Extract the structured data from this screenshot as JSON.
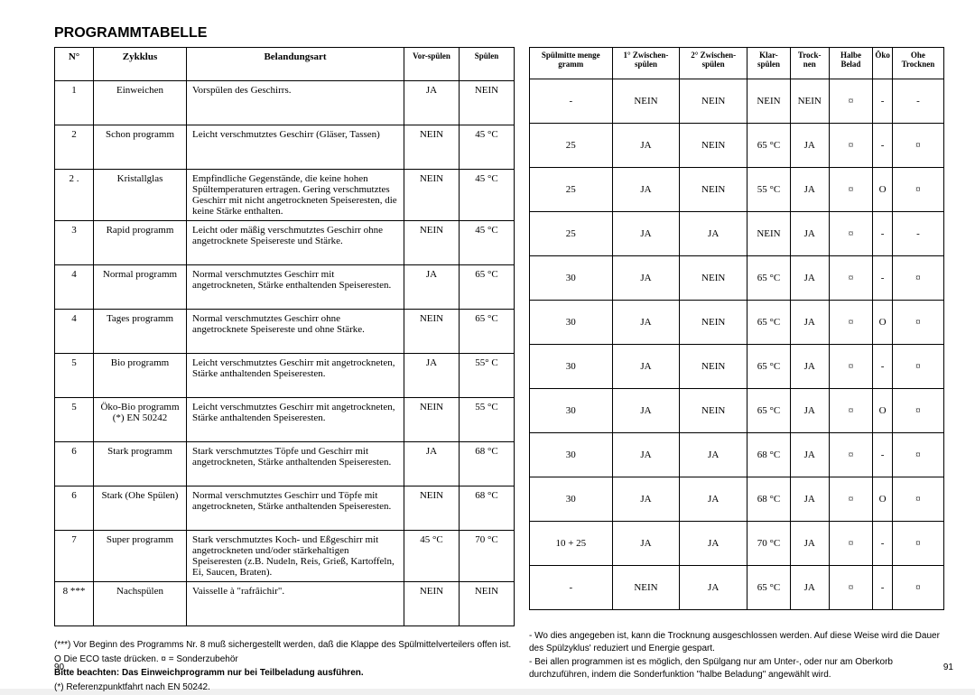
{
  "title": "PROGRAMMTABELLE",
  "leftPageNo": "90",
  "rightPageNo": "91",
  "leftHeaders": {
    "n": "N°",
    "zyklus": "Zykklus",
    "belandung": "Belandungsart",
    "vorspulen": "Vor-spülen",
    "spulen": "Spülen"
  },
  "leftRows": [
    {
      "n": "1",
      "zyk": "Einweichen",
      "bel": "Vorspülen des Geschirrs.",
      "vor": "JA",
      "sp": "NEIN"
    },
    {
      "n": "2",
      "zyk": "Schon programm",
      "bel": "Leicht verschmutztes Geschirr (Gläser, Tassen)",
      "vor": "NEIN",
      "sp": "45 °C"
    },
    {
      "n": "2 .",
      "zyk": "Kristallglas",
      "bel": "Empfindliche Gegenstände, die keine hohen Spültemperaturen ertragen. Gering verschmutztes Geschirr mit nicht angetrockneten Speiseresten, die keine Stärke enthalten.",
      "vor": "NEIN",
      "sp": "45 °C"
    },
    {
      "n": "3",
      "zyk": "Rapid programm",
      "bel": "Leicht oder mäßig verschmutztes Geschirr ohne angetrocknete Speisereste und Stärke.",
      "vor": "NEIN",
      "sp": "45 °C"
    },
    {
      "n": "4",
      "zyk": "Normal programm",
      "bel": "Normal verschmutztes Geschirr mit angetrockneten, Stärke enthaltenden Speiseresten.",
      "vor": "JA",
      "sp": "65 °C"
    },
    {
      "n": "4",
      "zyk": "Tages programm",
      "bel": "Normal verschmutztes Geschirr ohne angetrocknete Speisereste und ohne Stärke.",
      "vor": "NEIN",
      "sp": "65 °C"
    },
    {
      "n": "5",
      "zyk": "Bio programm",
      "bel": "Leicht verschmutztes Geschirr mit angetrockneten, Stärke anthaltenden Speiseresten.",
      "vor": "JA",
      "sp": "55° C"
    },
    {
      "n": "5",
      "zyk": "Öko-Bio programm (*) EN 50242",
      "bel": "Leicht verschmutztes Geschirr mit angetrockneten, Stärke anthaltenden Speiseresten.",
      "vor": "NEIN",
      "sp": "55 °C"
    },
    {
      "n": "6",
      "zyk": "Stark programm",
      "bel": "Stark verschmutztes Töpfe und Geschirr mit angetrockneten, Stärke anthaltenden Speiseresten.",
      "vor": "JA",
      "sp": "68 °C"
    },
    {
      "n": "6",
      "zyk": "Stark (Ohe Spülen)",
      "bel": "Normal verschmutztes Geschirr und Töpfe mit angetrockneten, Stärke anthaltenden Speiseresten.",
      "vor": "NEIN",
      "sp": "68 °C"
    },
    {
      "n": "7",
      "zyk": "Super programm",
      "bel": "Stark verschmutztes Koch- und Eßgeschirr mit angetrockneten und/oder stärkehaltigen Speiseresten (z.B. Nudeln, Reis, Grieß, Kartoffeln, Ei, Saucen, Braten).",
      "vor": "45 °C",
      "sp": "70 °C"
    },
    {
      "n": "8 ***",
      "zyk": "Nachspülen",
      "bel": "Vaisselle à \"rafrâichir\".",
      "vor": "NEIN",
      "sp": "NEIN"
    }
  ],
  "rightHeaders": {
    "spulmitte": "Spülmitte menge gramm",
    "zw1": "1° Zwischen-spülen",
    "zw2": "2° Zwischen-spülen",
    "klar": "Klar-spülen",
    "trock": "Trock-nen",
    "halbe": "Halbe Belad",
    "oko": "Öko",
    "ohe": "Ohe Trocknen"
  },
  "rightRows": [
    {
      "sm": "-",
      "z1": "NEIN",
      "z2": "NEIN",
      "kl": "NEIN",
      "tr": "NEIN",
      "hb": "¤",
      "ok": "-",
      "oh": "-"
    },
    {
      "sm": "25",
      "z1": "JA",
      "z2": "NEIN",
      "kl": "65 °C",
      "tr": "JA",
      "hb": "¤",
      "ok": "-",
      "oh": "¤"
    },
    {
      "sm": "25",
      "z1": "JA",
      "z2": "NEIN",
      "kl": "55 °C",
      "tr": "JA",
      "hb": "¤",
      "ok": "O",
      "oh": "¤"
    },
    {
      "sm": "25",
      "z1": "JA",
      "z2": "JA",
      "kl": "NEIN",
      "tr": "JA",
      "hb": "¤",
      "ok": "-",
      "oh": "-"
    },
    {
      "sm": "30",
      "z1": "JA",
      "z2": "NEIN",
      "kl": "65 °C",
      "tr": "JA",
      "hb": "¤",
      "ok": "-",
      "oh": "¤"
    },
    {
      "sm": "30",
      "z1": "JA",
      "z2": "NEIN",
      "kl": "65 °C",
      "tr": "JA",
      "hb": "¤",
      "ok": "O",
      "oh": "¤"
    },
    {
      "sm": "30",
      "z1": "JA",
      "z2": "NEIN",
      "kl": "65 °C",
      "tr": "JA",
      "hb": "¤",
      "ok": "-",
      "oh": "¤"
    },
    {
      "sm": "30",
      "z1": "JA",
      "z2": "NEIN",
      "kl": "65 °C",
      "tr": "JA",
      "hb": "¤",
      "ok": "O",
      "oh": "¤"
    },
    {
      "sm": "30",
      "z1": "JA",
      "z2": "JA",
      "kl": "68 °C",
      "tr": "JA",
      "hb": "¤",
      "ok": "-",
      "oh": "¤"
    },
    {
      "sm": "30",
      "z1": "JA",
      "z2": "JA",
      "kl": "68 °C",
      "tr": "JA",
      "hb": "¤",
      "ok": "O",
      "oh": "¤"
    },
    {
      "sm": "10 + 25",
      "z1": "JA",
      "z2": "JA",
      "kl": "70 °C",
      "tr": "JA",
      "hb": "¤",
      "ok": "-",
      "oh": "¤"
    },
    {
      "sm": "-",
      "z1": "NEIN",
      "z2": "JA",
      "kl": "65 °C",
      "tr": "JA",
      "hb": "¤",
      "ok": "-",
      "oh": "¤"
    }
  ],
  "leftNotes": [
    "(***) Vor Beginn des Programms Nr. 8 muß sichergestellt werden, daß die Klappe des Spülmittelverteilers offen ist.",
    "O Die ECO taste drücken.      ¤ = Sonderzubehör",
    "Bitte beachten: Das Einweichprogramm nur bei Teilbeladung ausführen.",
    "(*)  Referenzpunktfahrt nach EN 50242."
  ],
  "rightNotes": [
    "- Wo dies angegeben ist, kann die Trocknung ausgeschlossen werden. Auf diese Weise wird die Dauer des Spülzyklus' reduziert und Energie gespart.",
    "- Bei allen programmen ist es möglich, den Spülgang nur am Unter-, oder nur am Oberkorb durchzuführen, indem die Sonderfunktion \"halbe Beladung\" angewählt wird."
  ]
}
